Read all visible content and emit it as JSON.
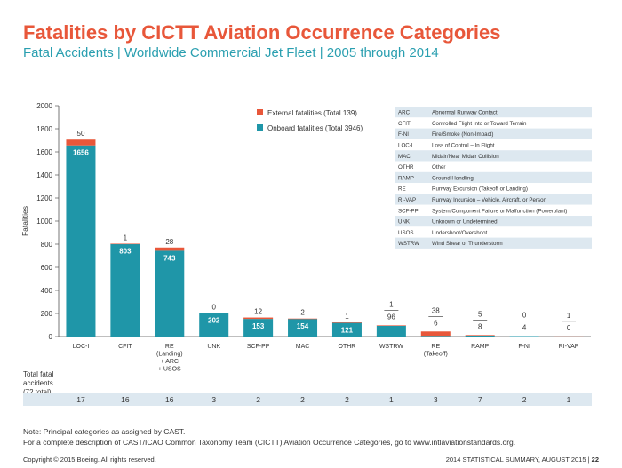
{
  "title": "Fatalities by CICTT Aviation Occurrence Categories",
  "subtitle": "Fatal Accidents | Worldwide Commercial Jet Fleet | 2005 through 2014",
  "colors": {
    "external": "#e8573a",
    "onboard": "#1f96a8",
    "title": "#e8573a",
    "subtitle": "#2a9fb0",
    "rowband": "#dde8f0"
  },
  "chart_data": {
    "type": "bar",
    "stacked": true,
    "ylabel": "Fatalities",
    "ylim": [
      0,
      2000
    ],
    "yticks": [
      "0",
      "200",
      "400",
      "600",
      "800",
      "1000",
      "1200",
      "1400",
      "1600",
      "1800",
      "2000"
    ],
    "categories": [
      "LOC-I",
      "CFIT",
      "RE (Landing) + ARC + USOS",
      "UNK",
      "SCF-PP",
      "MAC",
      "OTHR",
      "WSTRW",
      "RE (Takeoff)",
      "RAMP",
      "F-NI",
      "RI-VAP"
    ],
    "category_lines": [
      [
        "LOC-I"
      ],
      [
        "CFIT"
      ],
      [
        "RE",
        "(Landing)",
        "+ ARC",
        "+ USOS"
      ],
      [
        "UNK"
      ],
      [
        "SCF-PP"
      ],
      [
        "MAC"
      ],
      [
        "OTHR"
      ],
      [
        "WSTRW"
      ],
      [
        "RE",
        "(Takeoff)"
      ],
      [
        "RAMP"
      ],
      [
        "F-NI"
      ],
      [
        "RI-VAP"
      ]
    ],
    "series": [
      {
        "name": "Onboard fatalities (Total 3946)",
        "values": [
          1656,
          803,
          743,
          202,
          153,
          154,
          121,
          96,
          6,
          8,
          4,
          0
        ]
      },
      {
        "name": "External fatalities (Total 139)",
        "values": [
          50,
          1,
          28,
          0,
          12,
          2,
          1,
          1,
          38,
          5,
          0,
          1
        ]
      }
    ],
    "legend": [
      "External fatalities (Total 139)",
      "Onboard fatalities (Total 3946)"
    ],
    "accidents_label": [
      "Total fatal",
      "accidents",
      "(72 total)"
    ],
    "accidents": [
      17,
      16,
      16,
      3,
      2,
      2,
      2,
      1,
      3,
      7,
      2,
      1
    ]
  },
  "abbreviations": [
    {
      "code": "ARC",
      "desc": "Abnormal Runway Contact"
    },
    {
      "code": "CFIT",
      "desc": "Controlled Flight Into or Toward Terrain"
    },
    {
      "code": "F-NI",
      "desc": "Fire/Smoke (Non-Impact)"
    },
    {
      "code": "LOC-I",
      "desc": "Loss of Control – In Flight"
    },
    {
      "code": "MAC",
      "desc": "Midair/Near Midair Collision"
    },
    {
      "code": "OTHR",
      "desc": "Other"
    },
    {
      "code": "RAMP",
      "desc": "Ground Handling"
    },
    {
      "code": "RE",
      "desc": "Runway Excursion (Takeoff or Landing)"
    },
    {
      "code": "RI-VAP",
      "desc": "Runway Incursion – Vehicle, Aircraft, or Person"
    },
    {
      "code": "SCF-PP",
      "desc": "System/Component Failure or Malfunction (Powerplant)"
    },
    {
      "code": "UNK",
      "desc": "Unknown or Undetermined"
    },
    {
      "code": "USOS",
      "desc": "Undershoot/Overshoot"
    },
    {
      "code": "WSTRW",
      "desc": "Wind Shear or Thunderstorm"
    }
  ],
  "notes": {
    "line1": "Note: Principal categories as assigned by CAST.",
    "line2": "For a complete description of CAST/ICAO Common Taxonomy Team (CICTT) Aviation Occurrence Categories, go to www.intlaviationstandards.org."
  },
  "footer": {
    "copyright": "Copyright © 2015 Boeing. All rights reserved.",
    "summary": "2014 STATISTICAL SUMMARY, AUGUST 2015 |",
    "page": "22"
  }
}
